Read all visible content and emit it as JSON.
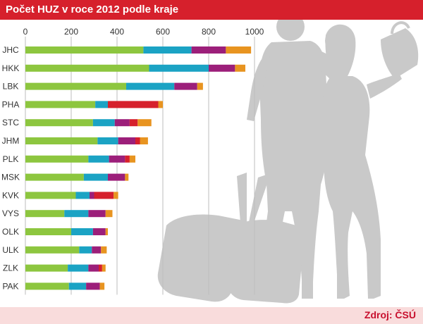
{
  "title": "Počet HUZ v roce 2012 podle kraje",
  "source": "Zdroj: ČSÚ",
  "colors": {
    "header": "#d6202c",
    "footer_bg": "#f9dcdc",
    "source_text": "#c8102e",
    "silhouette": "#c9c9c9",
    "segments": [
      "#8dc63f",
      "#1ba3c4",
      "#9c1f7a",
      "#e89420",
      "#d6202c"
    ]
  },
  "chart_data": {
    "type": "bar",
    "orientation": "horizontal",
    "stacked": true,
    "categories": [
      "JHC",
      "HKK",
      "LBK",
      "PHA",
      "STC",
      "JHM",
      "PLK",
      "MSK",
      "KVK",
      "VYS",
      "OLK",
      "ULK",
      "ZLK",
      "PAK"
    ],
    "xlim": [
      0,
      1000
    ],
    "xticks": [
      0,
      200,
      400,
      600,
      800,
      1000
    ],
    "grid": true,
    "title": "Počet HUZ v roce 2012 podle kraje",
    "xlabel": "",
    "ylabel": "",
    "rows": [
      {
        "category": "JHC",
        "segments": [
          {
            "v": 515,
            "c": "#8dc63f"
          },
          {
            "v": 210,
            "c": "#1ba3c4"
          },
          {
            "v": 150,
            "c": "#9c1f7a"
          },
          {
            "v": 110,
            "c": "#e89420"
          }
        ]
      },
      {
        "category": "HKK",
        "segments": [
          {
            "v": 540,
            "c": "#8dc63f"
          },
          {
            "v": 260,
            "c": "#1ba3c4"
          },
          {
            "v": 115,
            "c": "#9c1f7a"
          },
          {
            "v": 45,
            "c": "#e89420"
          }
        ]
      },
      {
        "category": "LBK",
        "segments": [
          {
            "v": 440,
            "c": "#8dc63f"
          },
          {
            "v": 210,
            "c": "#1ba3c4"
          },
          {
            "v": 100,
            "c": "#9c1f7a"
          },
          {
            "v": 25,
            "c": "#e89420"
          }
        ]
      },
      {
        "category": "PHA",
        "segments": [
          {
            "v": 305,
            "c": "#8dc63f"
          },
          {
            "v": 55,
            "c": "#1ba3c4"
          },
          {
            "v": 220,
            "c": "#d6202c"
          },
          {
            "v": 20,
            "c": "#e89420"
          }
        ]
      },
      {
        "category": "STC",
        "segments": [
          {
            "v": 295,
            "c": "#8dc63f"
          },
          {
            "v": 95,
            "c": "#1ba3c4"
          },
          {
            "v": 65,
            "c": "#9c1f7a"
          },
          {
            "v": 35,
            "c": "#d6202c"
          },
          {
            "v": 60,
            "c": "#e89420"
          }
        ]
      },
      {
        "category": "JHM",
        "segments": [
          {
            "v": 315,
            "c": "#8dc63f"
          },
          {
            "v": 90,
            "c": "#1ba3c4"
          },
          {
            "v": 75,
            "c": "#9c1f7a"
          },
          {
            "v": 20,
            "c": "#d6202c"
          },
          {
            "v": 35,
            "c": "#e89420"
          }
        ]
      },
      {
        "category": "PLK",
        "segments": [
          {
            "v": 275,
            "c": "#8dc63f"
          },
          {
            "v": 90,
            "c": "#1ba3c4"
          },
          {
            "v": 70,
            "c": "#9c1f7a"
          },
          {
            "v": 20,
            "c": "#d6202c"
          },
          {
            "v": 25,
            "c": "#e89420"
          }
        ]
      },
      {
        "category": "MSK",
        "segments": [
          {
            "v": 255,
            "c": "#8dc63f"
          },
          {
            "v": 105,
            "c": "#1ba3c4"
          },
          {
            "v": 75,
            "c": "#9c1f7a"
          },
          {
            "v": 15,
            "c": "#e89420"
          }
        ]
      },
      {
        "category": "KVK",
        "segments": [
          {
            "v": 220,
            "c": "#8dc63f"
          },
          {
            "v": 60,
            "c": "#1ba3c4"
          },
          {
            "v": 20,
            "c": "#9c1f7a"
          },
          {
            "v": 85,
            "c": "#d6202c"
          },
          {
            "v": 20,
            "c": "#e89420"
          }
        ]
      },
      {
        "category": "VYS",
        "segments": [
          {
            "v": 170,
            "c": "#8dc63f"
          },
          {
            "v": 105,
            "c": "#1ba3c4"
          },
          {
            "v": 75,
            "c": "#9c1f7a"
          },
          {
            "v": 30,
            "c": "#e89420"
          }
        ]
      },
      {
        "category": "OLK",
        "segments": [
          {
            "v": 200,
            "c": "#8dc63f"
          },
          {
            "v": 95,
            "c": "#1ba3c4"
          },
          {
            "v": 55,
            "c": "#9c1f7a"
          },
          {
            "v": 10,
            "c": "#e89420"
          }
        ]
      },
      {
        "category": "ULK",
        "segments": [
          {
            "v": 235,
            "c": "#8dc63f"
          },
          {
            "v": 55,
            "c": "#1ba3c4"
          },
          {
            "v": 40,
            "c": "#9c1f7a"
          },
          {
            "v": 25,
            "c": "#e89420"
          }
        ]
      },
      {
        "category": "ZLK",
        "segments": [
          {
            "v": 185,
            "c": "#8dc63f"
          },
          {
            "v": 90,
            "c": "#1ba3c4"
          },
          {
            "v": 45,
            "c": "#9c1f7a"
          },
          {
            "v": 15,
            "c": "#d6202c"
          },
          {
            "v": 15,
            "c": "#e89420"
          }
        ]
      },
      {
        "category": "PAK",
        "segments": [
          {
            "v": 190,
            "c": "#8dc63f"
          },
          {
            "v": 75,
            "c": "#1ba3c4"
          },
          {
            "v": 60,
            "c": "#9c1f7a"
          },
          {
            "v": 20,
            "c": "#e89420"
          }
        ]
      }
    ]
  }
}
